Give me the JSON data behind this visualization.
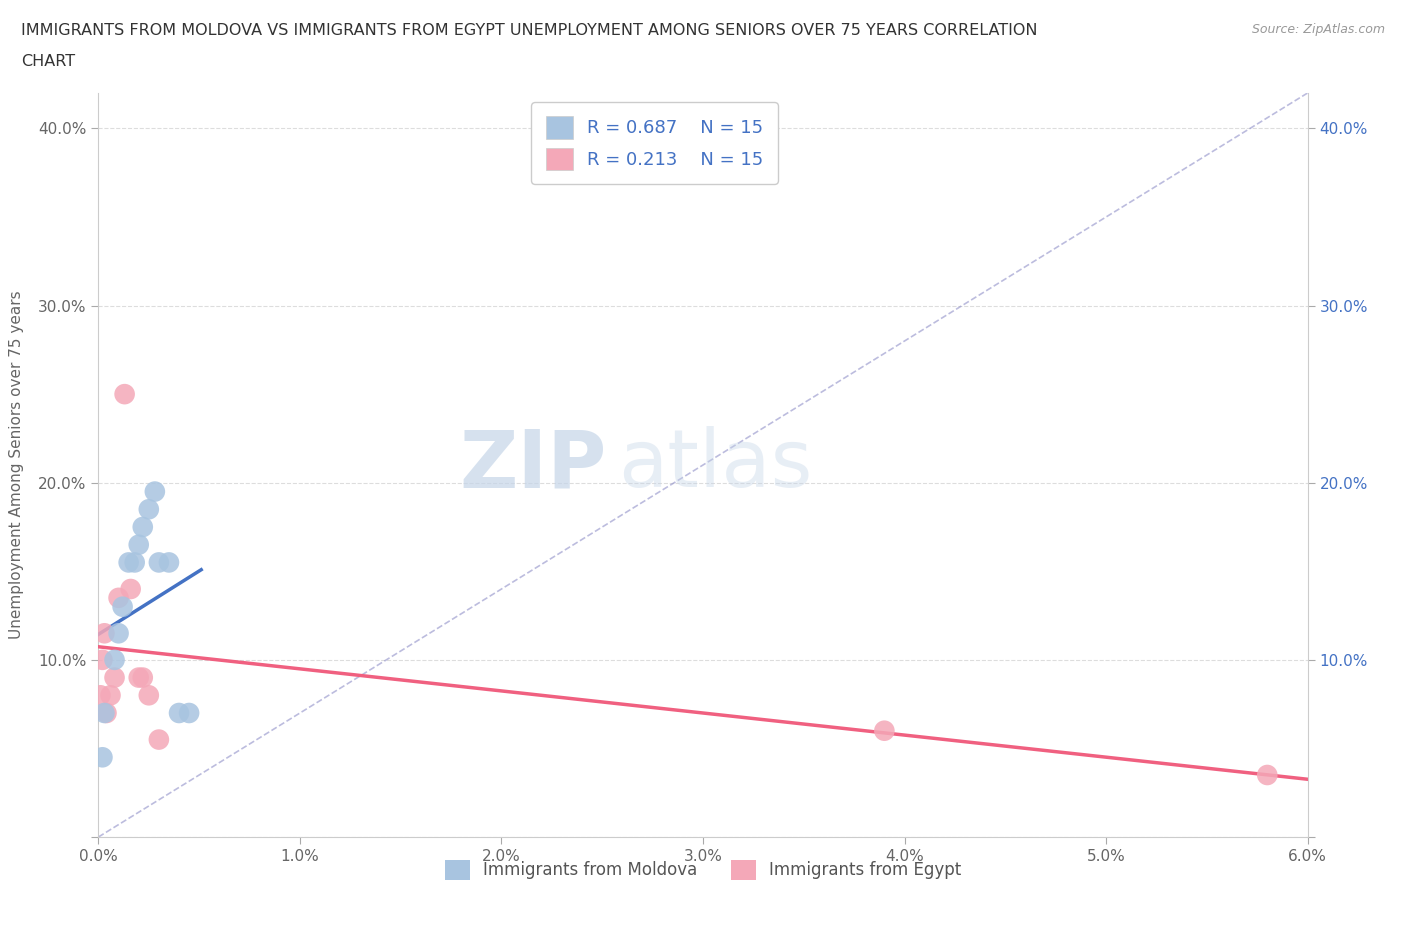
{
  "title": "IMMIGRANTS FROM MOLDOVA VS IMMIGRANTS FROM EGYPT UNEMPLOYMENT AMONG SENIORS OVER 75 YEARS CORRELATION\nCHART",
  "source": "Source: ZipAtlas.com",
  "ylabel": "Unemployment Among Seniors over 75 years",
  "xlim": [
    0.0,
    0.06
  ],
  "ylim": [
    0.0,
    0.42
  ],
  "xticks": [
    0.0,
    0.01,
    0.02,
    0.03,
    0.04,
    0.05,
    0.06
  ],
  "xticklabels": [
    "0.0%",
    "1.0%",
    "2.0%",
    "3.0%",
    "4.0%",
    "5.0%",
    "6.0%"
  ],
  "yticks": [
    0.0,
    0.1,
    0.2,
    0.3,
    0.4
  ],
  "yticklabels": [
    "",
    "10.0%",
    "20.0%",
    "30.0%",
    "40.0%"
  ],
  "moldova_color": "#a8c4e0",
  "egypt_color": "#f4a8b8",
  "moldova_line_color": "#4472c4",
  "egypt_line_color": "#f06080",
  "diagonal_color": "#9090c8",
  "R_moldova": 0.687,
  "R_egypt": 0.213,
  "N_moldova": 15,
  "N_egypt": 15,
  "watermark_zip": "ZIP",
  "watermark_atlas": "atlas",
  "legend_moldova": "Immigrants from Moldova",
  "legend_egypt": "Immigrants from Egypt",
  "background_color": "#ffffff",
  "grid_color": "#dddddd",
  "moldova_x": [
    0.0002,
    0.0003,
    0.0008,
    0.001,
    0.0012,
    0.0015,
    0.0018,
    0.002,
    0.0022,
    0.0025,
    0.0028,
    0.003,
    0.0035,
    0.004,
    0.0045
  ],
  "moldova_y": [
    0.045,
    0.07,
    0.1,
    0.115,
    0.13,
    0.155,
    0.155,
    0.165,
    0.175,
    0.185,
    0.195,
    0.155,
    0.155,
    0.07,
    0.07
  ],
  "egypt_x": [
    0.0001,
    0.0002,
    0.0003,
    0.0004,
    0.0006,
    0.0008,
    0.001,
    0.0013,
    0.0016,
    0.002,
    0.0022,
    0.0025,
    0.003,
    0.039,
    0.058
  ],
  "egypt_y": [
    0.08,
    0.1,
    0.115,
    0.07,
    0.08,
    0.09,
    0.135,
    0.25,
    0.14,
    0.09,
    0.09,
    0.08,
    0.055,
    0.06,
    0.035
  ],
  "moldova_size": 220,
  "egypt_size": 220
}
